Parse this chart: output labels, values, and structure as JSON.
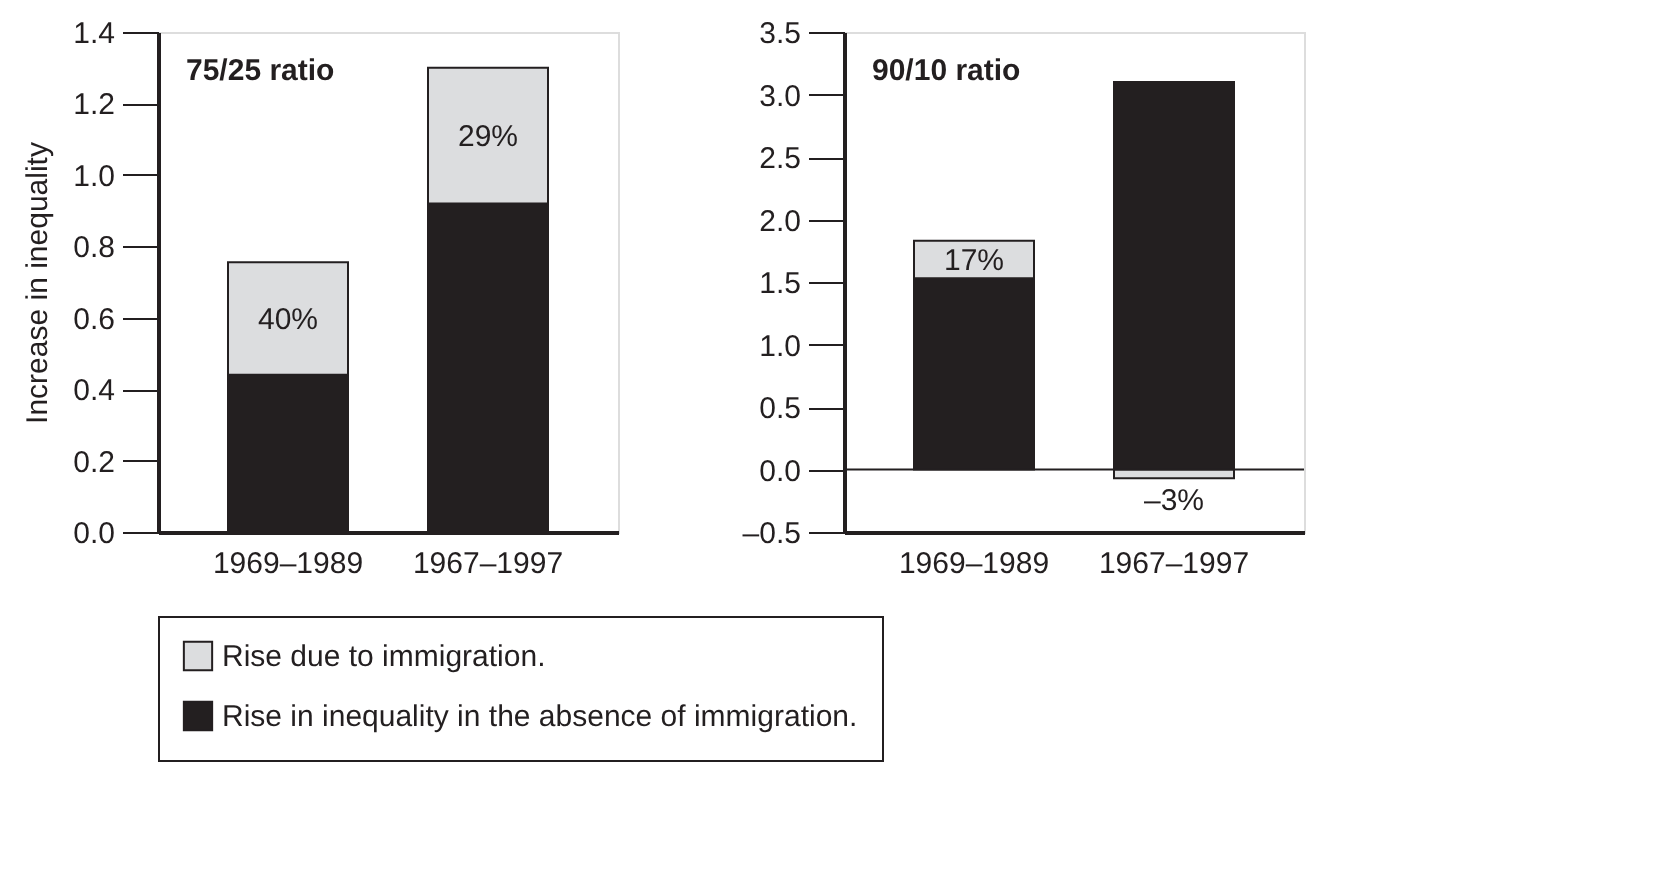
{
  "chart_data": [
    {
      "type": "bar",
      "title": "75/25 ratio",
      "ylabel": "Increase in inequality",
      "categories": [
        "1969–1989",
        "1967–1997"
      ],
      "stacked": true,
      "legend": "bottom",
      "series": [
        {
          "name": "Rise in inequality in the absence of immigration.",
          "color": "#231f20",
          "values": [
            0.44,
            0.92
          ]
        },
        {
          "name": "Rise due to immigration.",
          "color": "#dcdddf",
          "values": [
            0.315,
            0.38
          ]
        }
      ],
      "annotations": [
        "40%",
        "29%"
      ],
      "ylim": [
        0,
        1.4
      ],
      "yticks": [
        {
          "value": 0,
          "label": "0.0"
        },
        0.2,
        0.4,
        0.6,
        0.8,
        {
          "value": 1,
          "label": "1.0"
        },
        1.2,
        1.4
      ]
    },
    {
      "type": "bar",
      "title": "90/10 ratio",
      "categories": [
        "1969–1989",
        "1967–1997"
      ],
      "stacked": true,
      "legend": "bottom",
      "series": [
        {
          "name": "Rise in inequality in the absence of immigration.",
          "color": "#231f20",
          "values": [
            1.53,
            3.1
          ]
        },
        {
          "name": "Rise due to immigration.",
          "color": "#dcdddf",
          "values": [
            0.3,
            -0.07
          ]
        }
      ],
      "annotations": [
        "17%",
        "–3%"
      ],
      "ylim": [
        -0.5,
        3.5
      ],
      "yticks": [
        {
          "value": -0.5,
          "label": "–0.5"
        },
        {
          "value": 0,
          "label": "0.0"
        },
        0.5,
        {
          "value": 1,
          "label": "1.0"
        },
        1.5,
        {
          "value": 2,
          "label": "2.0"
        },
        2.5,
        {
          "value": 3,
          "label": "3.0"
        },
        3.5
      ]
    }
  ]
}
